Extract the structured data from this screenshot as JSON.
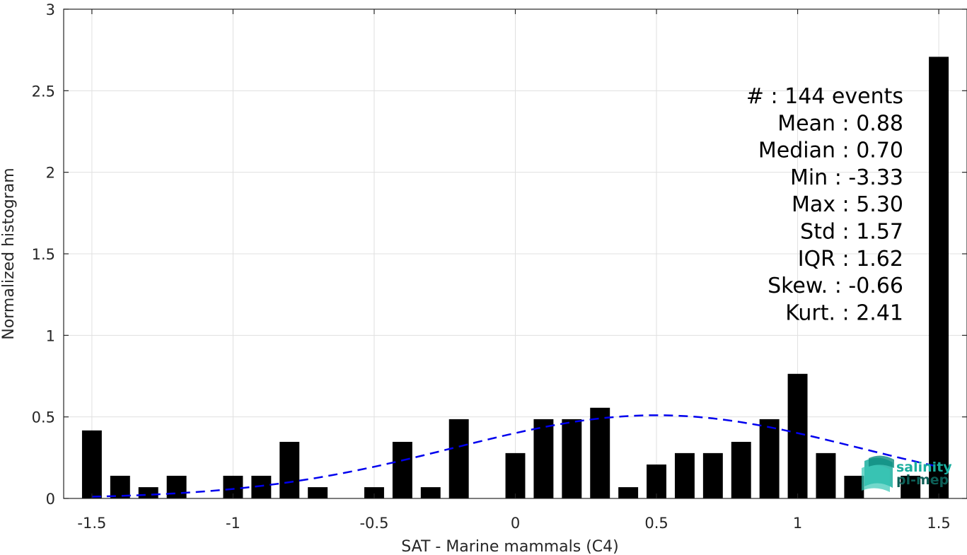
{
  "chart_data": {
    "type": "bar",
    "xlabel": "SAT - Marine mammals (C4)",
    "ylabel": "Normalized histogram",
    "xlim": [
      -1.6,
      1.6
    ],
    "ylim": [
      0,
      3
    ],
    "grid": true,
    "x_ticks": [
      "-1.5",
      "-1",
      "-0.5",
      "0",
      "0.5",
      "1",
      "1.5"
    ],
    "y_ticks": [
      "0",
      "0.5",
      "1",
      "1.5",
      "2",
      "2.5",
      "3"
    ],
    "bar_width": 0.07,
    "bins": [
      {
        "x": -1.5,
        "value": 0.417
      },
      {
        "x": -1.4,
        "value": 0.139
      },
      {
        "x": -1.3,
        "value": 0.069
      },
      {
        "x": -1.2,
        "value": 0.139
      },
      {
        "x": -1.1,
        "value": 0
      },
      {
        "x": -1.0,
        "value": 0.139
      },
      {
        "x": -0.9,
        "value": 0.139
      },
      {
        "x": -0.8,
        "value": 0.347
      },
      {
        "x": -0.7,
        "value": 0.069
      },
      {
        "x": -0.6,
        "value": 0
      },
      {
        "x": -0.5,
        "value": 0.069
      },
      {
        "x": -0.4,
        "value": 0.347
      },
      {
        "x": -0.3,
        "value": 0.069
      },
      {
        "x": -0.2,
        "value": 0.486
      },
      {
        "x": -0.1,
        "value": 0
      },
      {
        "x": 0.0,
        "value": 0.278
      },
      {
        "x": 0.1,
        "value": 0.486
      },
      {
        "x": 0.2,
        "value": 0.486
      },
      {
        "x": 0.3,
        "value": 0.556
      },
      {
        "x": 0.4,
        "value": 0.069
      },
      {
        "x": 0.5,
        "value": 0.208
      },
      {
        "x": 0.6,
        "value": 0.278
      },
      {
        "x": 0.7,
        "value": 0.278
      },
      {
        "x": 0.8,
        "value": 0.347
      },
      {
        "x": 0.9,
        "value": 0.486
      },
      {
        "x": 1.0,
        "value": 0.764
      },
      {
        "x": 1.1,
        "value": 0.278
      },
      {
        "x": 1.2,
        "value": 0.139
      },
      {
        "x": 1.3,
        "value": 0
      },
      {
        "x": 1.4,
        "value": 0.139
      },
      {
        "x": 1.5,
        "value": 2.708
      }
    ],
    "fit_curve": {
      "type": "gaussian",
      "mean": 0.5,
      "amplitude": 0.51,
      "sigma": 0.72,
      "x_range": [
        -1.5,
        1.5
      ],
      "color": "#0000ee",
      "style": "dashed"
    },
    "bar_color": "#000000",
    "stats": [
      {
        "label": "#  : 144 events"
      },
      {
        "label": "Mean : 0.88"
      },
      {
        "label": "Median : 0.70"
      },
      {
        "label": "Min : -3.33"
      },
      {
        "label": "Max : 5.30"
      },
      {
        "label": "Std : 1.57"
      },
      {
        "label": "IQR : 1.62"
      },
      {
        "label": "Skew. : -0.66"
      },
      {
        "label": "Kurt. : 2.41"
      }
    ]
  },
  "logo": {
    "line1": "salinity",
    "line2": "pi-mep",
    "color1": "#1aae9f",
    "color2": "#0d5f57"
  }
}
